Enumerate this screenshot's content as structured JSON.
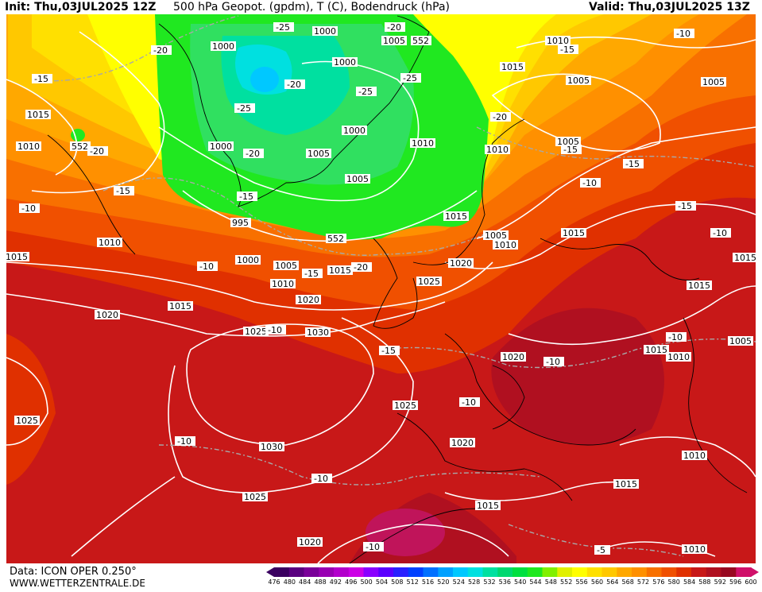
{
  "header": {
    "init": "Init: Thu,03JUL2025 12Z",
    "title": "500 hPa Geopot. (gpdm), T (C), Bodendruck (hPa)",
    "valid": "Valid: Thu,03JUL2025 13Z"
  },
  "footer": {
    "data": "Data: ICON OPER 0.250°",
    "site": "WWW.WETTERZENTRALE.DE"
  },
  "legend": {
    "ticks": [
      "476",
      "480",
      "484",
      "488",
      "492",
      "496",
      "500",
      "504",
      "508",
      "512",
      "516",
      "520",
      "524",
      "528",
      "532",
      "536",
      "540",
      "544",
      "548",
      "552",
      "556",
      "560",
      "564",
      "568",
      "572",
      "576",
      "580",
      "584",
      "588",
      "592",
      "596",
      "600"
    ],
    "colors": [
      "#3a0060",
      "#5a0080",
      "#7a0099",
      "#9900b3",
      "#b300cc",
      "#cc00e6",
      "#8a00ff",
      "#5a00ff",
      "#2a20ff",
      "#0040ff",
      "#0070ff",
      "#00a0ff",
      "#00c8ff",
      "#00e0e0",
      "#00e0a0",
      "#00d870",
      "#00e040",
      "#20e820",
      "#80f000",
      "#e0f000",
      "#ffff00",
      "#ffe000",
      "#ffc800",
      "#ffa800",
      "#ff9000",
      "#f87000",
      "#f05000",
      "#e03000",
      "#c81818",
      "#b01020",
      "#980820",
      "#d0106a"
    ]
  },
  "isobars": [
    {
      "text": "1000"
    },
    {
      "text": "1005"
    },
    {
      "text": "552"
    },
    {
      "text": "1010"
    },
    {
      "text": "1015"
    },
    {
      "text": "1005"
    },
    {
      "text": "1000"
    },
    {
      "text": "1000"
    },
    {
      "text": "1015"
    },
    {
      "text": "1005"
    },
    {
      "text": "1000"
    },
    {
      "text": "1000"
    },
    {
      "text": "1005"
    },
    {
      "text": "1010"
    },
    {
      "text": "1010"
    },
    {
      "text": "1005"
    },
    {
      "text": "1010"
    },
    {
      "text": "552"
    },
    {
      "text": "1005"
    },
    {
      "text": "1015"
    },
    {
      "text": "995"
    },
    {
      "text": "552"
    },
    {
      "text": "1015"
    },
    {
      "text": "1005"
    },
    {
      "text": "1010"
    },
    {
      "text": "1015"
    },
    {
      "text": "1010"
    },
    {
      "text": "1015"
    },
    {
      "text": "1000"
    },
    {
      "text": "1005"
    },
    {
      "text": "1015"
    },
    {
      "text": "1020"
    },
    {
      "text": "1010"
    },
    {
      "text": "1025"
    },
    {
      "text": "1015"
    },
    {
      "text": "1020"
    },
    {
      "text": "1015"
    },
    {
      "text": "1020"
    },
    {
      "text": "1025"
    },
    {
      "text": "1030"
    },
    {
      "text": "1010"
    },
    {
      "text": "1005"
    },
    {
      "text": "1020"
    },
    {
      "text": "1015"
    },
    {
      "text": "1025"
    },
    {
      "text": "1025"
    },
    {
      "text": "1030"
    },
    {
      "text": "1020"
    },
    {
      "text": "1010"
    },
    {
      "text": "1025"
    },
    {
      "text": "1015"
    },
    {
      "text": "1015"
    },
    {
      "text": "1020"
    },
    {
      "text": "1010"
    }
  ],
  "temperatures": [
    {
      "text": "-25"
    },
    {
      "text": "-20"
    },
    {
      "text": "-20"
    },
    {
      "text": "-10"
    },
    {
      "text": "-15"
    },
    {
      "text": "-15"
    },
    {
      "text": "-20"
    },
    {
      "text": "-25"
    },
    {
      "text": "-25"
    },
    {
      "text": "-25"
    },
    {
      "text": "-20"
    },
    {
      "text": "-20"
    },
    {
      "text": "-20"
    },
    {
      "text": "-15"
    },
    {
      "text": "-15"
    },
    {
      "text": "-15"
    },
    {
      "text": "-10"
    },
    {
      "text": "-15"
    },
    {
      "text": "-10"
    },
    {
      "text": "-15"
    },
    {
      "text": "-20"
    },
    {
      "text": "-10"
    },
    {
      "text": "-15"
    },
    {
      "text": "-10"
    },
    {
      "text": "-15"
    },
    {
      "text": "-10"
    },
    {
      "text": "-10"
    },
    {
      "text": "-10"
    },
    {
      "text": "-10"
    },
    {
      "text": "-10"
    },
    {
      "text": "-10"
    },
    {
      "text": "-10"
    },
    {
      "text": "-5"
    }
  ]
}
